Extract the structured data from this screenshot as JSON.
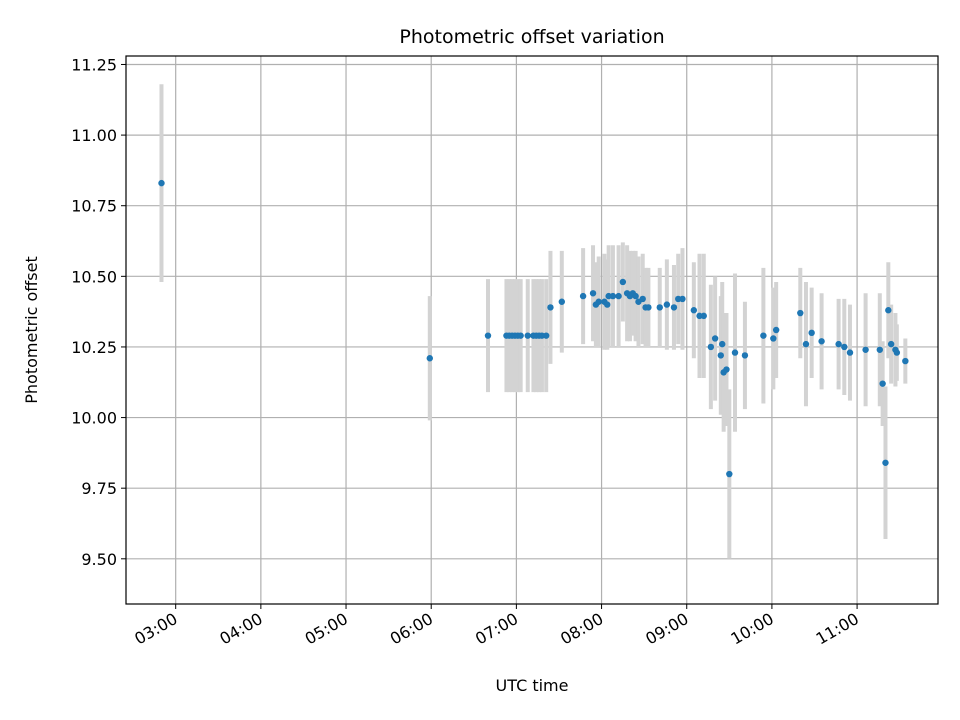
{
  "chart_data": {
    "type": "scatter",
    "title": "Photometric offset variation",
    "xlabel": "UTC time",
    "ylabel": "Photometric offset",
    "x_tick_labels": [
      "03:00",
      "04:00",
      "05:00",
      "06:00",
      "07:00",
      "08:00",
      "09:00",
      "10:00",
      "11:00"
    ],
    "y_tick_labels": [
      "9.50",
      "9.75",
      "10.00",
      "10.25",
      "10.50",
      "10.75",
      "11.00",
      "11.25"
    ],
    "xlim": [
      "02:25",
      "11:57"
    ],
    "ylim": [
      9.34,
      11.28
    ],
    "grid": true,
    "colors": {
      "points": "#1f77b4",
      "error_bars": "#d3d3d3",
      "grid": "#b0b0b0"
    },
    "series": [
      {
        "x": [
          "02:50",
          "05:59",
          "06:40",
          "06:53",
          "06:55",
          "06:57",
          "06:59",
          "07:01",
          "07:03",
          "07:08",
          "07:12",
          "07:14",
          "07:16",
          "07:18",
          "07:21",
          "07:24",
          "07:32",
          "07:47",
          "07:54",
          "07:56",
          "07:58",
          "08:02",
          "08:04",
          "08:05",
          "08:08",
          "08:12",
          "08:15",
          "08:18",
          "08:20",
          "08:22",
          "08:24",
          "08:26",
          "08:29",
          "08:31",
          "08:33",
          "08:41",
          "08:46",
          "08:51",
          "08:54",
          "08:57",
          "09:05",
          "09:09",
          "09:12",
          "09:17",
          "09:20",
          "09:24",
          "09:25",
          "09:26",
          "09:28",
          "09:30",
          "09:34",
          "09:41",
          "09:54",
          "10:01",
          "10:03",
          "10:20",
          "10:24",
          "10:28",
          "10:35",
          "10:47",
          "10:51",
          "10:55",
          "11:06",
          "11:16",
          "11:18",
          "11:20",
          "11:22",
          "11:24",
          "11:27",
          "11:28",
          "11:34"
        ],
        "y": [
          10.83,
          10.21,
          10.29,
          10.29,
          10.29,
          10.29,
          10.29,
          10.29,
          10.29,
          10.29,
          10.29,
          10.29,
          10.29,
          10.29,
          10.29,
          10.39,
          10.41,
          10.43,
          10.44,
          10.4,
          10.41,
          10.41,
          10.4,
          10.43,
          10.43,
          10.43,
          10.48,
          10.44,
          10.43,
          10.44,
          10.43,
          10.41,
          10.42,
          10.39,
          10.39,
          10.39,
          10.4,
          10.39,
          10.42,
          10.42,
          10.38,
          10.36,
          10.36,
          10.25,
          10.28,
          10.22,
          10.26,
          10.16,
          10.17,
          9.8,
          10.23,
          10.22,
          10.29,
          10.28,
          10.31,
          10.37,
          10.26,
          10.3,
          10.27,
          10.26,
          10.25,
          10.23,
          10.24,
          10.24,
          10.12,
          9.84,
          10.38,
          10.26,
          10.24,
          10.23,
          10.2
        ],
        "yerr": [
          0.35,
          0.22,
          0.2,
          0.2,
          0.2,
          0.2,
          0.2,
          0.2,
          0.2,
          0.2,
          0.2,
          0.2,
          0.2,
          0.2,
          0.2,
          0.2,
          0.18,
          0.17,
          0.17,
          0.15,
          0.16,
          0.17,
          0.16,
          0.18,
          0.18,
          0.18,
          0.14,
          0.17,
          0.16,
          0.15,
          0.16,
          0.16,
          0.16,
          0.14,
          0.14,
          0.14,
          0.16,
          0.15,
          0.16,
          0.18,
          0.17,
          0.22,
          0.22,
          0.22,
          0.22,
          0.21,
          0.22,
          0.21,
          0.2,
          0.3,
          0.28,
          0.19,
          0.24,
          0.18,
          0.17,
          0.16,
          0.22,
          0.16,
          0.17,
          0.16,
          0.17,
          0.17,
          0.2,
          0.2,
          0.15,
          0.27,
          0.17,
          0.14,
          0.13,
          0.1,
          0.08
        ]
      }
    ]
  }
}
